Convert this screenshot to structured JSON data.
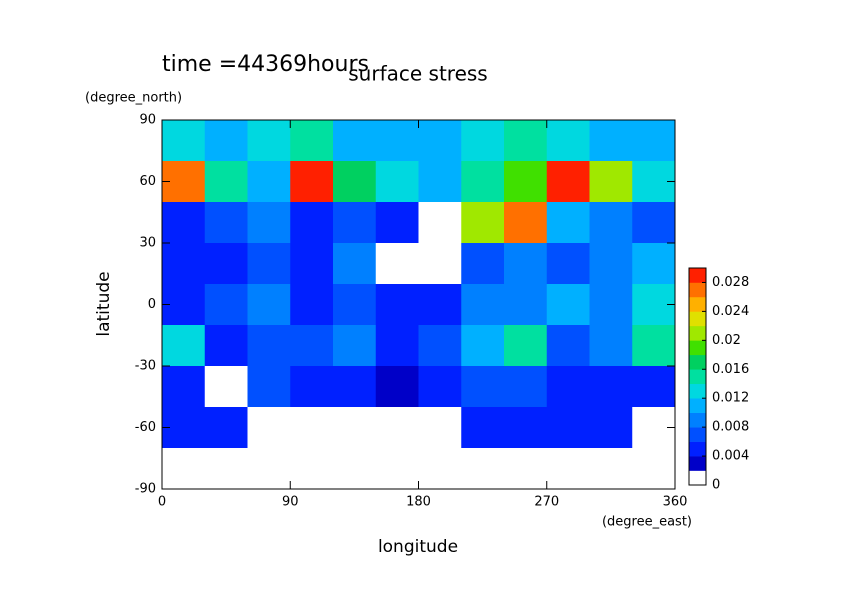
{
  "chart_data": {
    "type": "contour",
    "title": "surface stress",
    "subtitle": "time =44369hours",
    "x_label": "longitude",
    "y_label": "latitude",
    "x_unit": "(degree_east)",
    "y_unit": "(degree_north)",
    "xlim": [
      0,
      360
    ],
    "ylim": [
      -90,
      90
    ],
    "xticks": [
      0,
      90,
      180,
      270,
      360
    ],
    "yticks": [
      -90,
      -60,
      -30,
      0,
      30,
      60,
      90
    ],
    "x": [
      15,
      45,
      75,
      105,
      135,
      165,
      195,
      225,
      255,
      285,
      315,
      345
    ],
    "y": [
      80,
      60,
      40,
      20,
      0,
      -20,
      -40,
      -60,
      -80
    ],
    "z": [
      [
        0.012,
        0.01,
        0.012,
        0.014,
        0.01,
        0.01,
        0.01,
        0.012,
        0.014,
        0.012,
        0.01,
        0.01
      ],
      [
        0.026,
        0.014,
        0.01,
        0.028,
        0.016,
        0.012,
        0.01,
        0.014,
        0.018,
        0.03,
        0.02,
        0.012
      ],
      [
        0.004,
        0.006,
        0.008,
        0.004,
        0.006,
        0.004,
        0.001,
        0.02,
        0.026,
        0.01,
        0.008,
        0.006
      ],
      [
        0.004,
        0.004,
        0.006,
        0.004,
        0.008,
        0.001,
        0.001,
        0.006,
        0.008,
        0.006,
        0.008,
        0.01
      ],
      [
        0.004,
        0.006,
        0.008,
        0.004,
        0.006,
        0.004,
        0.004,
        0.008,
        0.008,
        0.01,
        0.008,
        0.012
      ],
      [
        0.012,
        0.004,
        0.006,
        0.006,
        0.008,
        0.004,
        0.006,
        0.01,
        0.014,
        0.006,
        0.008,
        0.014
      ],
      [
        0.004,
        0.001,
        0.006,
        0.004,
        0.004,
        0.002,
        0.004,
        0.006,
        0.006,
        0.004,
        0.004,
        0.004
      ],
      [
        0.004,
        0.004,
        0.001,
        0.001,
        0.001,
        0.001,
        0.001,
        0.004,
        0.004,
        0.004,
        0.004,
        0.001
      ],
      [
        0,
        0,
        0,
        0,
        0,
        0,
        0,
        0,
        0,
        0,
        0,
        0
      ]
    ],
    "levels": [
      0,
      0.002,
      0.004,
      0.006,
      0.008,
      0.01,
      0.012,
      0.014,
      0.016,
      0.018,
      0.02,
      0.022,
      0.024,
      0.026,
      0.028,
      0.03
    ],
    "colors": [
      "#ffffff",
      "#0000c8",
      "#0020ff",
      "#0050ff",
      "#0080ff",
      "#00b0ff",
      "#00d8e0",
      "#00e0a0",
      "#00d060",
      "#40e000",
      "#a0e800",
      "#e0e000",
      "#ffb000",
      "#ff7000",
      "#ff2000"
    ],
    "colorbar_ticks": [
      0,
      0.004,
      0.008,
      0.012,
      0.016,
      0.02,
      0.024,
      0.028
    ]
  }
}
